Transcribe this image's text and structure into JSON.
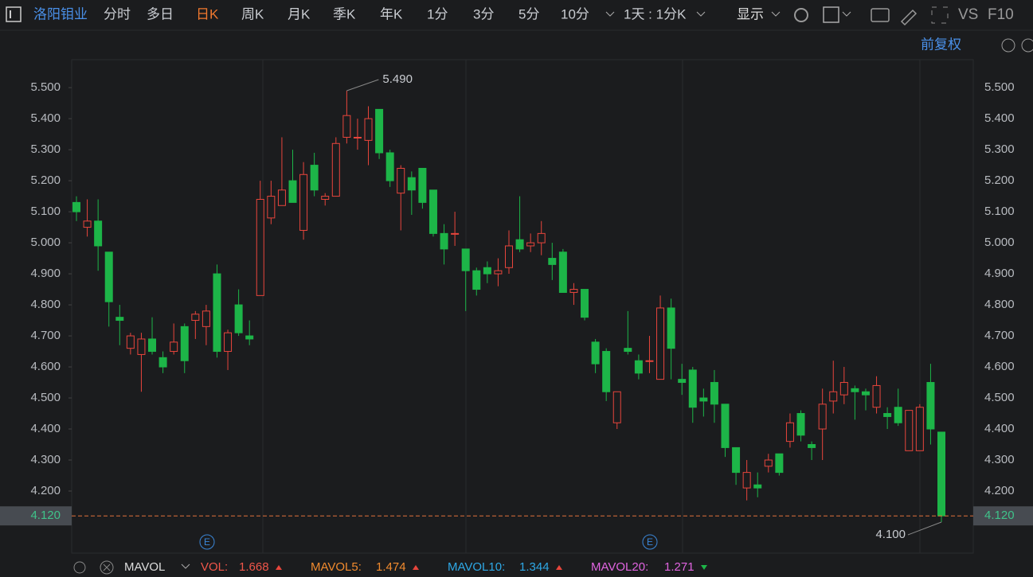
{
  "toolbar": {
    "stock": "洛阳钼业",
    "tabs": [
      "分时",
      "多日",
      "日K",
      "周K",
      "月K",
      "季K",
      "年K",
      "1分",
      "3分",
      "5分",
      "10分"
    ],
    "period": "1天 : 1分K",
    "display": "显示",
    "vs": "VS",
    "f10": "F10",
    "adjust": "前复权"
  },
  "chart_data": {
    "type": "candlestick",
    "open": [
      5.13,
      5.05,
      5.07,
      4.97,
      4.76,
      4.66,
      4.64,
      4.69,
      4.63,
      4.65,
      4.73,
      4.75,
      4.73,
      4.9,
      4.65,
      4.8,
      4.7,
      4.83,
      5.08,
      5.12,
      5.2,
      5.04,
      5.25,
      5.14,
      5.15,
      5.34,
      5.34,
      5.33,
      5.43,
      5.29,
      5.16,
      5.21,
      5.24,
      5.17,
      5.03,
      5.03,
      4.98,
      4.91,
      4.92,
      4.9,
      4.92,
      5.01,
      4.99,
      5.0,
      4.95,
      4.97,
      4.84,
      4.85,
      4.68,
      4.65,
      4.42,
      4.66,
      4.62,
      4.62,
      4.56,
      4.79,
      4.56,
      4.59,
      4.5,
      4.55,
      4.48,
      4.34,
      4.21,
      4.22,
      4.28,
      4.32,
      4.36,
      4.45,
      4.35,
      4.4,
      4.49,
      4.51,
      4.53,
      4.52,
      4.47,
      4.45,
      4.47,
      4.33,
      4.33,
      4.55,
      4.39
    ],
    "high": [
      5.15,
      5.14,
      5.14,
      4.97,
      4.8,
      4.71,
      4.71,
      4.76,
      4.65,
      4.74,
      4.74,
      4.78,
      4.8,
      4.93,
      4.72,
      4.85,
      4.75,
      5.2,
      5.2,
      5.34,
      5.3,
      5.26,
      5.29,
      5.16,
      5.34,
      5.49,
      5.4,
      5.44,
      5.43,
      5.3,
      5.25,
      5.23,
      5.24,
      5.17,
      5.06,
      5.1,
      4.98,
      4.92,
      4.94,
      4.95,
      5.04,
      5.15,
      5.03,
      5.07,
      5.0,
      4.98,
      4.87,
      4.85,
      4.69,
      4.66,
      4.52,
      4.78,
      4.64,
      4.7,
      4.83,
      4.82,
      4.61,
      4.6,
      4.53,
      4.59,
      4.48,
      4.34,
      4.3,
      4.26,
      4.32,
      4.32,
      4.45,
      4.46,
      4.36,
      4.53,
      4.62,
      4.6,
      4.54,
      4.53,
      4.57,
      4.47,
      4.53,
      4.46,
      4.48,
      4.61,
      4.39
    ],
    "low": [
      5.07,
      5.02,
      4.91,
      4.73,
      4.67,
      4.64,
      4.52,
      4.64,
      4.58,
      4.64,
      4.58,
      4.69,
      4.67,
      4.63,
      4.59,
      4.7,
      4.67,
      4.83,
      5.06,
      5.12,
      5.13,
      5.01,
      5.15,
      5.12,
      5.15,
      5.32,
      5.3,
      5.25,
      5.27,
      5.18,
      5.04,
      5.09,
      5.11,
      5.02,
      4.93,
      4.99,
      4.78,
      4.83,
      4.87,
      4.86,
      4.9,
      4.97,
      4.97,
      4.96,
      4.88,
      4.84,
      4.8,
      4.75,
      4.58,
      4.49,
      4.4,
      4.64,
      4.56,
      4.58,
      4.56,
      4.56,
      4.51,
      4.42,
      4.44,
      4.42,
      4.31,
      4.22,
      4.17,
      4.18,
      4.26,
      4.25,
      4.34,
      4.36,
      4.3,
      4.3,
      4.45,
      4.48,
      4.43,
      4.46,
      4.45,
      4.4,
      4.41,
      4.33,
      4.33,
      4.35,
      4.1
    ],
    "close": [
      5.1,
      5.07,
      4.99,
      4.81,
      4.75,
      4.7,
      4.69,
      4.65,
      4.6,
      4.68,
      4.62,
      4.77,
      4.78,
      4.65,
      4.71,
      4.71,
      4.69,
      5.14,
      5.15,
      5.17,
      5.13,
      5.22,
      5.17,
      5.15,
      5.32,
      5.41,
      5.34,
      5.4,
      5.29,
      5.2,
      5.24,
      5.17,
      5.13,
      5.03,
      4.98,
      5.03,
      4.91,
      4.85,
      4.9,
      4.91,
      4.99,
      4.98,
      5.0,
      5.03,
      4.93,
      4.84,
      4.85,
      4.76,
      4.61,
      4.52,
      4.52,
      4.65,
      4.58,
      4.62,
      4.79,
      4.66,
      4.55,
      4.47,
      4.49,
      4.48,
      4.34,
      4.26,
      4.26,
      4.21,
      4.3,
      4.26,
      4.42,
      4.38,
      4.34,
      4.48,
      4.52,
      4.55,
      4.52,
      4.51,
      4.54,
      4.44,
      4.42,
      4.46,
      4.47,
      4.4,
      4.12
    ],
    "up_color": "#e8453c",
    "down_color": "#1db548",
    "ylim": [
      4.0,
      5.59
    ],
    "yticks": [
      {
        "value": 4.2,
        "label": "4.200"
      },
      {
        "value": 4.3,
        "label": "4.300"
      },
      {
        "value": 4.4,
        "label": "4.400"
      },
      {
        "value": 4.5,
        "label": "4.500"
      },
      {
        "value": 4.6,
        "label": "4.600"
      },
      {
        "value": 4.7,
        "label": "4.700"
      },
      {
        "value": 4.8,
        "label": "4.800"
      },
      {
        "value": 4.9,
        "label": "4.900"
      },
      {
        "value": 5.0,
        "label": "5.000"
      },
      {
        "value": 5.1,
        "label": "5.100"
      },
      {
        "value": 5.2,
        "label": "5.200"
      },
      {
        "value": 5.3,
        "label": "5.300"
      },
      {
        "value": 5.4,
        "label": "5.400"
      },
      {
        "value": 5.5,
        "label": "5.500"
      }
    ],
    "high_label": {
      "value": 5.49,
      "label": "5.490"
    },
    "low_label": {
      "value": 4.1,
      "label": "4.100"
    },
    "last_price": {
      "value": 4.12,
      "label": "4.120"
    },
    "events": [
      "E",
      "E"
    ]
  },
  "indicator_bar": {
    "name": "MAVOL",
    "items": [
      {
        "key": "VOL:",
        "value": "1.668",
        "color": "#f0564a"
      },
      {
        "key": "MAVOL5:",
        "value": "1.474",
        "color": "#f08a2e"
      },
      {
        "key": "MAVOL10:",
        "value": "1.344",
        "color": "#2ea8e6"
      },
      {
        "key": "MAVOL20:",
        "value": "1.271",
        "color": "#e064e0"
      }
    ]
  }
}
